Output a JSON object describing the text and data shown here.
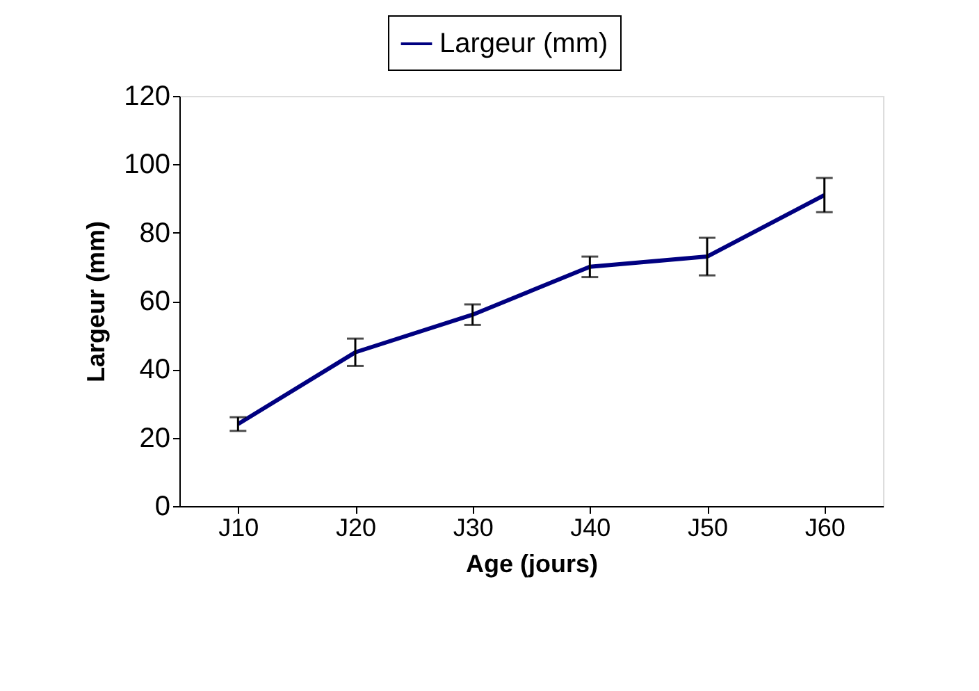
{
  "chart_data": {
    "type": "line",
    "xlabel": "Age (jours)",
    "ylabel": "Largeur (mm)",
    "categories": [
      "J10",
      "J20",
      "J30",
      "J40",
      "J50",
      "J60"
    ],
    "series": [
      {
        "name": "Largeur (mm)",
        "color": "#000080",
        "values": [
          24,
          45,
          56,
          70,
          73,
          91
        ],
        "errors": [
          2,
          4,
          3,
          3,
          5.5,
          5
        ]
      }
    ],
    "ylim": [
      0,
      120
    ],
    "yticks": [
      0,
      20,
      40,
      60,
      80,
      100,
      120
    ],
    "grid": false,
    "legend": "top",
    "marker": "none",
    "line_style": "solid"
  }
}
